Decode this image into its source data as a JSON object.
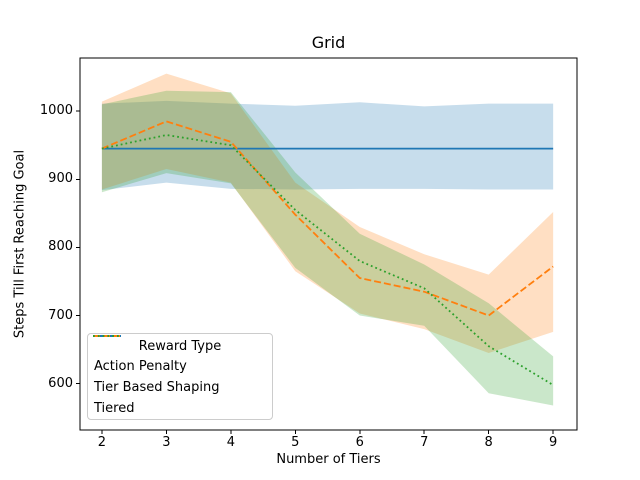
{
  "chart_data": {
    "type": "line",
    "title": "Grid",
    "xlabel": "Number of Tiers",
    "ylabel": "Steps Till First Reaching Goal",
    "x": [
      2,
      3,
      4,
      5,
      6,
      7,
      8,
      9
    ],
    "xticks": [
      2,
      3,
      4,
      5,
      6,
      7,
      8,
      9
    ],
    "yticks": [
      600,
      700,
      800,
      900,
      1000
    ],
    "xlim": [
      1.66,
      9.37
    ],
    "ylim": [
      532,
      1078
    ],
    "grid": false,
    "band_alpha": 0.25,
    "legend": {
      "title": "Reward Type",
      "position": "lower left"
    },
    "series": [
      {
        "name": "Action Penalty",
        "color": "#1f77b4",
        "linestyle": "solid",
        "values": [
          945,
          945,
          945,
          945,
          945,
          945,
          945,
          945
        ],
        "band_upper": [
          1011,
          1015,
          1011,
          1008,
          1013,
          1007,
          1011,
          1011
        ],
        "band_lower": [
          884,
          895,
          886,
          885,
          886,
          886,
          885,
          885
        ]
      },
      {
        "name": "Tier Based Shaping",
        "color": "#ff7f0e",
        "linestyle": "dashed",
        "values": [
          945,
          985,
          955,
          848,
          755,
          735,
          700,
          772
        ],
        "band_upper": [
          1014,
          1055,
          1026,
          895,
          830,
          790,
          760,
          852
        ],
        "band_lower": [
          885,
          915,
          895,
          765,
          703,
          680,
          645,
          676
        ]
      },
      {
        "name": "Tiered",
        "color": "#2ca02c",
        "linestyle": "dotted",
        "values": [
          945,
          965,
          950,
          855,
          780,
          740,
          655,
          598
        ],
        "band_upper": [
          1010,
          1030,
          1028,
          910,
          820,
          775,
          718,
          640
        ],
        "band_lower": [
          881,
          909,
          894,
          770,
          700,
          685,
          586,
          568
        ]
      }
    ]
  }
}
